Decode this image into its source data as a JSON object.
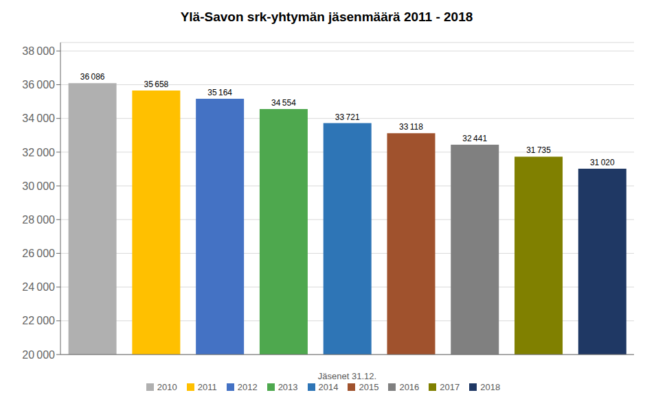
{
  "chart_data": {
    "type": "bar",
    "title": "Ylä-Savon srk-yhtymän jäsenmäärä 2011 - 2018",
    "xlabel": "Jäsenet 31.12.",
    "categories": [
      "2010",
      "2011",
      "2012",
      "2013",
      "2014",
      "2015",
      "2016",
      "2017",
      "2018"
    ],
    "values": [
      36086,
      35658,
      35164,
      34554,
      33721,
      33118,
      32441,
      31735,
      31020
    ],
    "value_labels": [
      "36 086",
      "35 658",
      "35 164",
      "34 554",
      "33 721",
      "33 118",
      "32 441",
      "31 735",
      "31 020"
    ],
    "colors": [
      "#B0B0B0",
      "#FFC000",
      "#4472C4",
      "#4EA84E",
      "#2E75B6",
      "#A0522D",
      "#808080",
      "#808000",
      "#1F3864"
    ],
    "data_labels": true,
    "ylim": [
      20000,
      38500
    ],
    "yticks": [
      {
        "value": 20000,
        "label": "20 000"
      },
      {
        "value": 22000,
        "label": "22 000"
      },
      {
        "value": 24000,
        "label": "24 000"
      },
      {
        "value": 26000,
        "label": "26 000"
      },
      {
        "value": 28000,
        "label": "28 000"
      },
      {
        "value": 30000,
        "label": "30 000"
      },
      {
        "value": 32000,
        "label": "32 000"
      },
      {
        "value": 34000,
        "label": "34 000"
      },
      {
        "value": 36000,
        "label": "36 000"
      },
      {
        "value": 38000,
        "label": "38 000"
      }
    ],
    "grid": true,
    "legend": "bottom",
    "tick_labels": "y"
  }
}
